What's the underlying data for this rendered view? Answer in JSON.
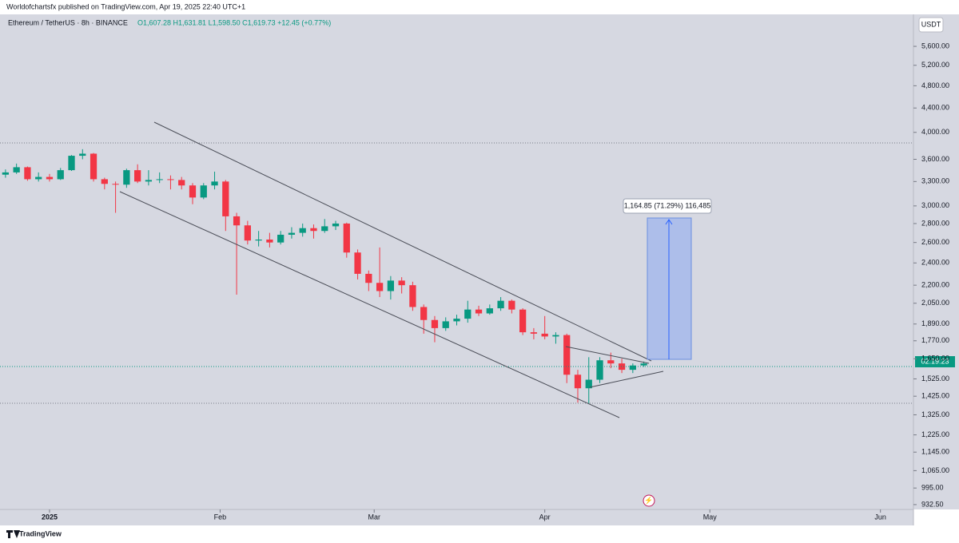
{
  "chart_data": {
    "type": "candlestick",
    "header": "Worldofchartsfx published on TradingView.com, Apr 19, 2025 22:40 UTC+1",
    "title": "Ethereum / TetherUS · 8h · BINANCE",
    "ohlc_label": "O1,607.28 H1,631.81 L1,598.50 C1,619.73 +12.45 (+0.77%)",
    "currency": "USDT",
    "annotation": "1,164.85 (71.29%) 116,485",
    "countdown": "02:19:23",
    "brand": "TradingView",
    "up_color": "#089981",
    "down_color": "#f23645",
    "log_scale": true,
    "grid": false,
    "x": [
      -8,
      -6,
      -4,
      -2,
      0,
      2,
      4,
      6,
      8,
      10,
      12,
      14,
      16,
      18,
      20,
      22,
      24,
      26,
      28,
      30,
      32,
      34,
      36,
      38,
      40,
      42,
      44,
      46,
      48,
      50,
      52,
      54,
      56,
      58,
      60,
      62,
      64,
      66,
      68,
      70,
      72,
      74,
      76,
      78,
      80,
      82,
      84,
      86,
      88,
      90,
      92,
      94,
      96,
      98,
      100,
      102,
      104,
      106,
      108
    ],
    "open": [
      3390,
      3420,
      3490,
      3330,
      3360,
      3330,
      3450,
      3650,
      3680,
      3330,
      3270,
      3260,
      3450,
      3300,
      3320,
      3330,
      3320,
      3250,
      3100,
      3250,
      3300,
      2880,
      2780,
      2620,
      2630,
      2600,
      2680,
      2700,
      2750,
      2720,
      2770,
      2800,
      2500,
      2300,
      2220,
      2150,
      2240,
      2200,
      2020,
      1920,
      1860,
      1910,
      1930,
      2000,
      1970,
      2010,
      2070,
      2000,
      1830,
      1820,
      1800,
      1810,
      1550,
      1470,
      1520,
      1640,
      1620,
      1580,
      1607.28
    ],
    "high": [
      3460,
      3540,
      3500,
      3420,
      3400,
      3480,
      3660,
      3745,
      3690,
      3350,
      3300,
      3470,
      3530,
      3450,
      3420,
      3380,
      3360,
      3280,
      3280,
      3430,
      3320,
      2920,
      2830,
      2720,
      2700,
      2720,
      2760,
      2800,
      2790,
      2850,
      2830,
      2810,
      2530,
      2330,
      2550,
      2280,
      2270,
      2230,
      2040,
      1950,
      1940,
      1960,
      2070,
      2030,
      2040,
      2100,
      2080,
      2010,
      1860,
      1950,
      1830,
      1820,
      1580,
      1660,
      1660,
      1690,
      1650,
      1620,
      1631.81
    ],
    "low": [
      3350,
      3400,
      3310,
      3300,
      3300,
      3320,
      3440,
      3600,
      3300,
      3200,
      2920,
      3220,
      3280,
      3250,
      3280,
      3200,
      3200,
      3020,
      3080,
      3200,
      2720,
      2120,
      2580,
      2560,
      2550,
      2580,
      2640,
      2660,
      2640,
      2700,
      2730,
      2450,
      2250,
      2150,
      2100,
      2080,
      2130,
      1990,
      1820,
      1760,
      1840,
      1880,
      1900,
      1950,
      1960,
      1990,
      1970,
      1810,
      1780,
      1780,
      1750,
      1500,
      1390,
      1385,
      1500,
      1590,
      1560,
      1560,
      1598.5
    ],
    "close": [
      3420,
      3490,
      3330,
      3360,
      3330,
      3450,
      3650,
      3680,
      3330,
      3270,
      3260,
      3450,
      3300,
      3320,
      3330,
      3320,
      3250,
      3100,
      3250,
      3300,
      2880,
      2780,
      2620,
      2630,
      2600,
      2680,
      2700,
      2750,
      2720,
      2770,
      2800,
      2500,
      2300,
      2220,
      2150,
      2240,
      2200,
      2020,
      1920,
      1860,
      1910,
      1930,
      2000,
      1970,
      2010,
      2070,
      2000,
      1830,
      1820,
      1800,
      1810,
      1550,
      1470,
      1520,
      1640,
      1620,
      1580,
      1607,
      1619.73
    ],
    "xlim": [
      -9,
      157
    ],
    "xticks": [
      {
        "value": 0,
        "label": "2025"
      },
      {
        "value": 31,
        "label": "Feb"
      },
      {
        "value": 59,
        "label": "Mar"
      },
      {
        "value": 90,
        "label": "Apr"
      },
      {
        "value": 120,
        "label": "May"
      },
      {
        "value": 151,
        "label": "Jun"
      }
    ],
    "ylim": [
      915,
      6346
    ],
    "yticks": [
      {
        "value": 932.5,
        "label": "932.50"
      },
      {
        "value": 995,
        "label": "995.00"
      },
      {
        "value": 1065,
        "label": "1,065.00"
      },
      {
        "value": 1145,
        "label": "1,145.00"
      },
      {
        "value": 1225,
        "label": "1,225.00"
      },
      {
        "value": 1325,
        "label": "1,325.00"
      },
      {
        "value": 1425,
        "label": "1,425.00"
      },
      {
        "value": 1525,
        "label": "1,525.00"
      },
      {
        "value": 1650,
        "label": "1,650.00"
      },
      {
        "value": 1770,
        "label": "1,770.00"
      },
      {
        "value": 1890,
        "label": "1,890.00"
      },
      {
        "value": 2050,
        "label": "2,050.00"
      },
      {
        "value": 2200,
        "label": "2,200.00"
      },
      {
        "value": 2400,
        "label": "2,400.00"
      },
      {
        "value": 2600,
        "label": "2,600.00"
      },
      {
        "value": 2800,
        "label": "2,800.00"
      },
      {
        "value": 3000,
        "label": "3,000.00"
      },
      {
        "value": 3300,
        "label": "3,300.00"
      },
      {
        "value": 3600,
        "label": "3,600.00"
      },
      {
        "value": 4000,
        "label": "4,000.00"
      },
      {
        "value": 4400,
        "label": "4,400.00"
      },
      {
        "value": 4800,
        "label": "4,800.00"
      },
      {
        "value": 5200,
        "label": "5,200.00"
      },
      {
        "value": 5600,
        "label": "5,600.00"
      }
    ]
  }
}
